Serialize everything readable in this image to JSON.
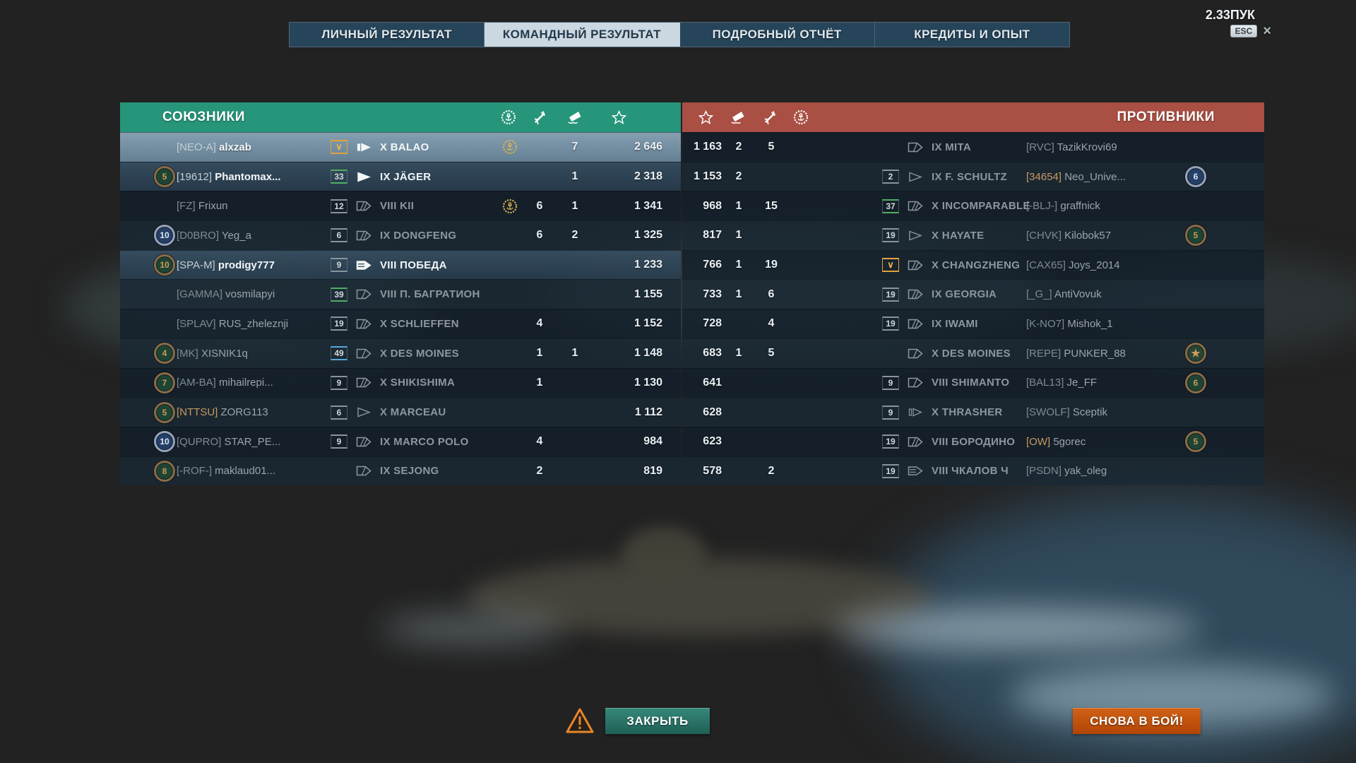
{
  "hud": {
    "version_label": "2.33ПУК",
    "esc_label": "ESC",
    "close_icon": "×"
  },
  "tabs": [
    {
      "label": "ЛИЧНЫЙ РЕЗУЛЬТАТ",
      "active": false
    },
    {
      "label": "КОМАНДНЫЙ РЕЗУЛЬТАТ",
      "active": true
    },
    {
      "label": "ПОДРОБНЫЙ ОТЧЁТ",
      "active": false
    },
    {
      "label": "КРЕДИТЫ И ОПЫТ",
      "active": false
    }
  ],
  "columns": {
    "achievements_icon": "wreath-anchor-icon",
    "planes_icon": "plane-destroyed-icon",
    "frags_icon": "ship-sunk-icon",
    "xp_icon": "star-icon"
  },
  "colors": {
    "allies_header": "#279579",
    "enemies_header": "#a94f44",
    "self_row": "#859fb1",
    "close_button": "#2a7d6f",
    "battle_button": "#c25310"
  },
  "teams": {
    "allies": {
      "title": "СОЮЗНИКИ",
      "rows": [
        {
          "emblem": null,
          "clan": "[NEO-A]",
          "name": "alxzab",
          "clan_color": "",
          "badge": {
            "type": "orangeV",
            "text": "∨"
          },
          "class": "sub",
          "ship": "X  BALAO",
          "ach": 1,
          "planes": "",
          "frags": "7",
          "xp": "2 646",
          "state": "self"
        },
        {
          "emblem": {
            "num": "5",
            "color": "green"
          },
          "clan": "[19612]",
          "name": "Phantomax...",
          "clan_color": "",
          "badge": {
            "type": "green",
            "text": "33"
          },
          "class": "dd",
          "ship": "IX  JÄGER",
          "ach": 0,
          "planes": "",
          "frags": "1",
          "xp": "2 318",
          "state": "alive"
        },
        {
          "emblem": null,
          "clan": "[FZ]",
          "name": "Frixun",
          "clan_color": "",
          "badge": {
            "type": "grey",
            "text": "12"
          },
          "class": "bb",
          "ship": "VIII  KII",
          "ach": 1,
          "planes": "6",
          "frags": "1",
          "xp": "1 341",
          "state": "dead"
        },
        {
          "emblem": {
            "num": "10",
            "color": "blue"
          },
          "clan": "[D0BRO]",
          "name": "Yeg_a",
          "clan_color": "",
          "badge": {
            "type": "grey",
            "text": "6"
          },
          "class": "bb",
          "ship": "IX  DONGFENG",
          "ach": 0,
          "planes": "6",
          "frags": "2",
          "xp": "1 325",
          "state": "dead"
        },
        {
          "emblem": {
            "num": "10",
            "color": "green"
          },
          "clan": "[SPA-M]",
          "name": "prodigy777",
          "clan_color": "",
          "badge": {
            "type": "grey",
            "text": "9"
          },
          "class": "cv",
          "ship": "VIII  ПОБЕДА",
          "ach": 0,
          "planes": "",
          "frags": "",
          "xp": "1 233",
          "state": "alive"
        },
        {
          "emblem": null,
          "clan": "[GAMMA]",
          "name": "vosmilapyi",
          "clan_color": "",
          "badge": {
            "type": "green",
            "text": "39"
          },
          "class": "ca",
          "ship": "VIII  П. БАГРАТИОН",
          "ach": 0,
          "planes": "",
          "frags": "",
          "xp": "1 155",
          "state": "dead"
        },
        {
          "emblem": null,
          "clan": "[SPLAV]",
          "name": "RUS_zheleznji",
          "clan_color": "",
          "badge": {
            "type": "grey",
            "text": "19"
          },
          "class": "bb",
          "ship": "X  SCHLIEFFEN",
          "ach": 0,
          "planes": "4",
          "frags": "",
          "xp": "1 152",
          "state": "dead"
        },
        {
          "emblem": {
            "num": "4",
            "color": "green"
          },
          "clan": "[MK]",
          "name": "XISNIK1q",
          "clan_color": "",
          "badge": {
            "type": "blue",
            "text": "49"
          },
          "class": "ca",
          "ship": "X  DES MOINES",
          "ach": 0,
          "planes": "1",
          "frags": "1",
          "xp": "1 148",
          "state": "dead"
        },
        {
          "emblem": {
            "num": "7",
            "color": "green"
          },
          "clan": "[AM-BA]",
          "name": "mihailrepi...",
          "clan_color": "",
          "badge": {
            "type": "grey",
            "text": "9"
          },
          "class": "bb",
          "ship": "X  SHIKISHIMA",
          "ach": 0,
          "planes": "1",
          "frags": "",
          "xp": "1 130",
          "state": "dead"
        },
        {
          "emblem": {
            "num": "5",
            "color": "green"
          },
          "clan": "[NTTSU]",
          "name": "ZORG113",
          "clan_color": "orange",
          "badge": {
            "type": "grey",
            "text": "6"
          },
          "class": "dd",
          "ship": "X  MARCEAU",
          "ach": 0,
          "planes": "",
          "frags": "",
          "xp": "1 112",
          "state": "dead"
        },
        {
          "emblem": {
            "num": "10",
            "color": "blue"
          },
          "clan": "[QUPRO]",
          "name": "STAR_PE...",
          "clan_color": "",
          "badge": {
            "type": "grey",
            "text": "9"
          },
          "class": "bb",
          "ship": "IX  MARCO POLO",
          "ach": 0,
          "planes": "4",
          "frags": "",
          "xp": "984",
          "state": "dead"
        },
        {
          "emblem": {
            "num": "8",
            "color": "green"
          },
          "clan": "[-ROF-]",
          "name": "maklaud01...",
          "clan_color": "",
          "badge": null,
          "class": "ca",
          "ship": "IX  SEJONG",
          "ach": 0,
          "planes": "2",
          "frags": "",
          "xp": "819",
          "state": "dead"
        }
      ]
    },
    "enemies": {
      "title": "ПРОТИВНИКИ",
      "rows": [
        {
          "xp": "1 163",
          "frags": "2",
          "planes": "5",
          "ach": 0,
          "badge": null,
          "class": "ca",
          "ship": "IX  MITA",
          "clan": "[RVC]",
          "name": "TazikKrovi69",
          "clan_color": "",
          "emblem": null,
          "state": "dead"
        },
        {
          "xp": "1 153",
          "frags": "2",
          "planes": "",
          "ach": 0,
          "badge": {
            "type": "grey",
            "text": "2"
          },
          "class": "dd",
          "ship": "IX  F. SCHULTZ",
          "clan": "[34654]",
          "name": "Neo_Unive...",
          "clan_color": "orange",
          "emblem": {
            "num": "6",
            "color": "blue"
          },
          "state": "dead"
        },
        {
          "xp": "968",
          "frags": "1",
          "planes": "15",
          "ach": 0,
          "badge": {
            "type": "green",
            "text": "37"
          },
          "class": "bb",
          "ship": "X  INCOMPARABLE",
          "clan": "[-BLJ-]",
          "name": "graffnick",
          "clan_color": "",
          "emblem": null,
          "state": "dead"
        },
        {
          "xp": "817",
          "frags": "1",
          "planes": "",
          "ach": 0,
          "badge": {
            "type": "grey",
            "text": "19"
          },
          "class": "dd",
          "ship": "X  HAYATE",
          "clan": "[CHVK]",
          "name": "Kilobok57",
          "clan_color": "",
          "emblem": {
            "num": "5",
            "color": "green"
          },
          "state": "dead"
        },
        {
          "xp": "766",
          "frags": "1",
          "planes": "19",
          "ach": 0,
          "badge": {
            "type": "orangeV",
            "text": "∨"
          },
          "class": "bb",
          "ship": "X  CHANGZHENG",
          "clan": "[CAX65]",
          "name": "Joys_2014",
          "clan_color": "",
          "emblem": null,
          "state": "dead"
        },
        {
          "xp": "733",
          "frags": "1",
          "planes": "6",
          "ach": 0,
          "badge": {
            "type": "grey",
            "text": "19"
          },
          "class": "bb",
          "ship": "IX  GEORGIA",
          "clan": "[_G_]",
          "name": "AntiVovuk",
          "clan_color": "",
          "emblem": null,
          "state": "dead"
        },
        {
          "xp": "728",
          "frags": "",
          "planes": "4",
          "ach": 0,
          "badge": {
            "type": "grey",
            "text": "19"
          },
          "class": "bb",
          "ship": "IX  IWAMI",
          "clan": "[K-NO7]",
          "name": "Mishok_1",
          "clan_color": "",
          "emblem": null,
          "state": "dead"
        },
        {
          "xp": "683",
          "frags": "1",
          "planes": "5",
          "ach": 0,
          "badge": null,
          "class": "ca",
          "ship": "X  DES MOINES",
          "clan": "[REPE]",
          "name": "PUNKER_88",
          "clan_color": "",
          "emblem": {
            "num": "★",
            "color": "star"
          },
          "state": "dead"
        },
        {
          "xp": "641",
          "frags": "",
          "planes": "",
          "ach": 0,
          "badge": {
            "type": "grey",
            "text": "9"
          },
          "class": "ca",
          "ship": "VIII  SHIMANTO",
          "clan": "[BAL13]",
          "name": "Je_FF",
          "clan_color": "",
          "emblem": {
            "num": "6",
            "color": "green"
          },
          "state": "dead"
        },
        {
          "xp": "628",
          "frags": "",
          "planes": "",
          "ach": 0,
          "badge": {
            "type": "grey",
            "text": "9"
          },
          "class": "sub",
          "ship": "X  THRASHER",
          "clan": "[SWOLF]",
          "name": "Sceptik",
          "clan_color": "",
          "emblem": null,
          "state": "dead"
        },
        {
          "xp": "623",
          "frags": "",
          "planes": "",
          "ach": 0,
          "badge": {
            "type": "grey",
            "text": "19"
          },
          "class": "bb",
          "ship": "VIII  БОРОДИНО",
          "clan": "[OW]",
          "name": "5gorec",
          "clan_color": "orange",
          "emblem": {
            "num": "5",
            "color": "green"
          },
          "state": "dead"
        },
        {
          "xp": "578",
          "frags": "",
          "planes": "2",
          "ach": 0,
          "badge": {
            "type": "grey",
            "text": "19"
          },
          "class": "cv",
          "ship": "VIII  ЧКАЛОВ Ч",
          "clan": "[PSDN]",
          "name": "yak_oleg",
          "clan_color": "",
          "emblem": null,
          "state": "dead"
        }
      ]
    }
  },
  "footer": {
    "warning_icon": "warning-triangle",
    "close_button": "ЗАКРЫТЬ",
    "battle_button": "СНОВА В БОЙ!"
  }
}
